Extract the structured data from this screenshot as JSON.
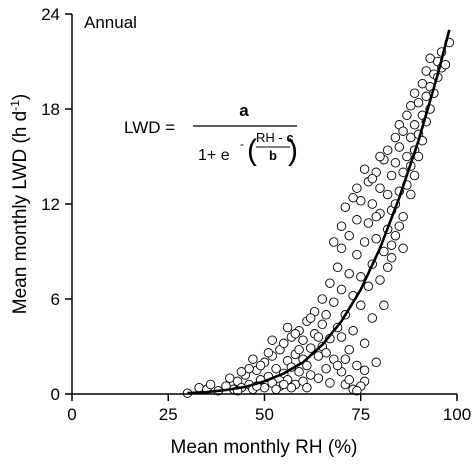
{
  "chart_data": {
    "type": "scatter",
    "annotation": "Annual",
    "xlabel": "Mean monthly RH (%)",
    "ylabel": {
      "text": "Mean monthly LWD (h d",
      "sup": "-1",
      "close": ")"
    },
    "xlim": [
      0,
      100
    ],
    "ylim": [
      0,
      24
    ],
    "xticks": [
      0,
      25,
      50,
      75,
      100
    ],
    "yticks": [
      0,
      6,
      12,
      18,
      24
    ],
    "grid": false,
    "legend": "none",
    "equation": {
      "lhs": "LWD =",
      "numerator": "a",
      "denominator_prefix": "1+ e",
      "exp_sign": "-",
      "exp_numerator_prefix": "RH - ",
      "exp_numerator_var": "c",
      "exp_denominator": "b"
    },
    "fit_curve": {
      "x": [
        30,
        35,
        40,
        45,
        50,
        55,
        60,
        65,
        70,
        75,
        80,
        85,
        90,
        95,
        98
      ],
      "y": [
        0.05,
        0.12,
        0.25,
        0.45,
        0.8,
        1.3,
        2.0,
        3.1,
        4.6,
        6.6,
        9.2,
        12.4,
        16.0,
        20.2,
        23.0
      ]
    },
    "points": [
      [
        30,
        0.05
      ],
      [
        33,
        0.4
      ],
      [
        35,
        0.3
      ],
      [
        36,
        0.6
      ],
      [
        38,
        0.2
      ],
      [
        40,
        0.5
      ],
      [
        41,
        1.0
      ],
      [
        42,
        0.3
      ],
      [
        43,
        0.8
      ],
      [
        44,
        0.4
      ],
      [
        45,
        1.2
      ],
      [
        46,
        0.6
      ],
      [
        47,
        0.3
      ],
      [
        48,
        1.5
      ],
      [
        49,
        0.9
      ],
      [
        50,
        0.4
      ],
      [
        50,
        2.0
      ],
      [
        51,
        1.1
      ],
      [
        52,
        0.7
      ],
      [
        52,
        2.4
      ],
      [
        53,
        1.6
      ],
      [
        54,
        0.5
      ],
      [
        54,
        2.8
      ],
      [
        55,
        1.3
      ],
      [
        55,
        3.2
      ],
      [
        56,
        0.9
      ],
      [
        56,
        2.1
      ],
      [
        57,
        1.7
      ],
      [
        57,
        3.6
      ],
      [
        58,
        0.6
      ],
      [
        58,
        2.5
      ],
      [
        59,
        1.4
      ],
      [
        59,
        4.0
      ],
      [
        60,
        2.2
      ],
      [
        60,
        0.8
      ],
      [
        60,
        3.4
      ],
      [
        61,
        1.8
      ],
      [
        61,
        4.6
      ],
      [
        62,
        2.9
      ],
      [
        62,
        1.2
      ],
      [
        63,
        3.8
      ],
      [
        63,
        5.2
      ],
      [
        64,
        2.4
      ],
      [
        64,
        1.0
      ],
      [
        65,
        4.4
      ],
      [
        65,
        3.0
      ],
      [
        65,
        6.0
      ],
      [
        66,
        1.6
      ],
      [
        66,
        5.0
      ],
      [
        67,
        3.5
      ],
      [
        67,
        7.0
      ],
      [
        68,
        2.2
      ],
      [
        68,
        5.8
      ],
      [
        69,
        4.2
      ],
      [
        69,
        8.0
      ],
      [
        70,
        1.4
      ],
      [
        70,
        3.6
      ],
      [
        70,
        6.6
      ],
      [
        70,
        9.2
      ],
      [
        71,
        5.0
      ],
      [
        71,
        0.6
      ],
      [
        72,
        7.6
      ],
      [
        72,
        2.8
      ],
      [
        72,
        10.0
      ],
      [
        73,
        6.2
      ],
      [
        73,
        4.0
      ],
      [
        73,
        0.3
      ],
      [
        74,
        8.8
      ],
      [
        74,
        11.0
      ],
      [
        74,
        1.8
      ],
      [
        75,
        5.6
      ],
      [
        75,
        7.4
      ],
      [
        75,
        12.2
      ],
      [
        76,
        9.6
      ],
      [
        76,
        3.2
      ],
      [
        76,
        0.8
      ],
      [
        77,
        6.8
      ],
      [
        77,
        10.8
      ],
      [
        77,
        13.4
      ],
      [
        78,
        8.2
      ],
      [
        78,
        4.8
      ],
      [
        78,
        12.0
      ],
      [
        79,
        9.8
      ],
      [
        79,
        14.0
      ],
      [
        79,
        2.0
      ],
      [
        80,
        7.2
      ],
      [
        80,
        11.4
      ],
      [
        80,
        13.0
      ],
      [
        81,
        9.0
      ],
      [
        81,
        14.8
      ],
      [
        81,
        5.6
      ],
      [
        82,
        12.6
      ],
      [
        82,
        10.4
      ],
      [
        82,
        15.4
      ],
      [
        83,
        8.6
      ],
      [
        83,
        13.8
      ],
      [
        83,
        11.6
      ],
      [
        84,
        14.6
      ],
      [
        84,
        16.2
      ],
      [
        84,
        10.0
      ],
      [
        85,
        12.8
      ],
      [
        85,
        15.6
      ],
      [
        85,
        17.0
      ],
      [
        86,
        14.0
      ],
      [
        86,
        11.2
      ],
      [
        86,
        16.6
      ],
      [
        87,
        15.0
      ],
      [
        87,
        17.6
      ],
      [
        87,
        13.2
      ],
      [
        88,
        16.2
      ],
      [
        88,
        18.2
      ],
      [
        88,
        14.4
      ],
      [
        89,
        17.0
      ],
      [
        89,
        15.4
      ],
      [
        89,
        19.0
      ],
      [
        90,
        16.4
      ],
      [
        90,
        18.4
      ],
      [
        90,
        15.0
      ],
      [
        91,
        17.6
      ],
      [
        91,
        19.6
      ],
      [
        91,
        16.0
      ],
      [
        92,
        18.8
      ],
      [
        92,
        17.2
      ],
      [
        92,
        20.4
      ],
      [
        93,
        19.4
      ],
      [
        93,
        18.0
      ],
      [
        93,
        21.2
      ],
      [
        94,
        20.2
      ],
      [
        94,
        19.0
      ],
      [
        95,
        21.0
      ],
      [
        95,
        20.0
      ],
      [
        96,
        21.6
      ],
      [
        96,
        20.6
      ],
      [
        97,
        20.8
      ],
      [
        98,
        22.2
      ],
      [
        75,
        0.5
      ],
      [
        74,
        0.2
      ],
      [
        76,
        1.5
      ],
      [
        72,
        0.9
      ],
      [
        71,
        2.2
      ],
      [
        69,
        1.8
      ],
      [
        67,
        0.7
      ],
      [
        66,
        2.6
      ],
      [
        64,
        3.6
      ],
      [
        62,
        4.8
      ],
      [
        61,
        0.4
      ],
      [
        59,
        2.8
      ],
      [
        58,
        3.8
      ],
      [
        57,
        0.4
      ],
      [
        56,
        4.2
      ],
      [
        55,
        0.6
      ],
      [
        53,
        0.3
      ],
      [
        52,
        3.4
      ],
      [
        51,
        2.6
      ],
      [
        49,
        1.8
      ],
      [
        48,
        0.5
      ],
      [
        47,
        2.2
      ],
      [
        46,
        1.6
      ],
      [
        44,
        1.4
      ],
      [
        43,
        0.2
      ],
      [
        68,
        9.6
      ],
      [
        70,
        10.6
      ],
      [
        71,
        11.8
      ],
      [
        73,
        12.4
      ],
      [
        74,
        13.0
      ],
      [
        76,
        14.2
      ],
      [
        78,
        13.6
      ],
      [
        79,
        11.2
      ],
      [
        80,
        15.0
      ],
      [
        82,
        8.0
      ],
      [
        83,
        9.4
      ],
      [
        84,
        12.0
      ],
      [
        85,
        10.6
      ],
      [
        86,
        9.2
      ],
      [
        88,
        12.6
      ],
      [
        89,
        13.8
      ]
    ]
  }
}
